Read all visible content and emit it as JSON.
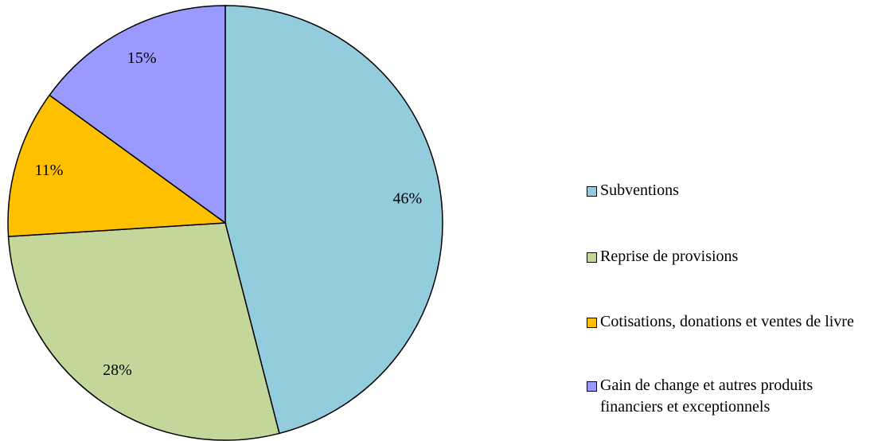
{
  "chart_data": {
    "type": "pie",
    "categories": [
      "Subventions",
      "Reprise de provisions",
      "Cotisations, donations et ventes de livre",
      "Gain de change et autres produits financiers et exceptionnels"
    ],
    "values": [
      46,
      28,
      11,
      15
    ],
    "value_labels": [
      "46%",
      "28%",
      "11%",
      "15%"
    ],
    "colors": [
      "#93cddd",
      "#c4d79b",
      "#ffc000",
      "#9999ff"
    ],
    "legend": "right"
  }
}
